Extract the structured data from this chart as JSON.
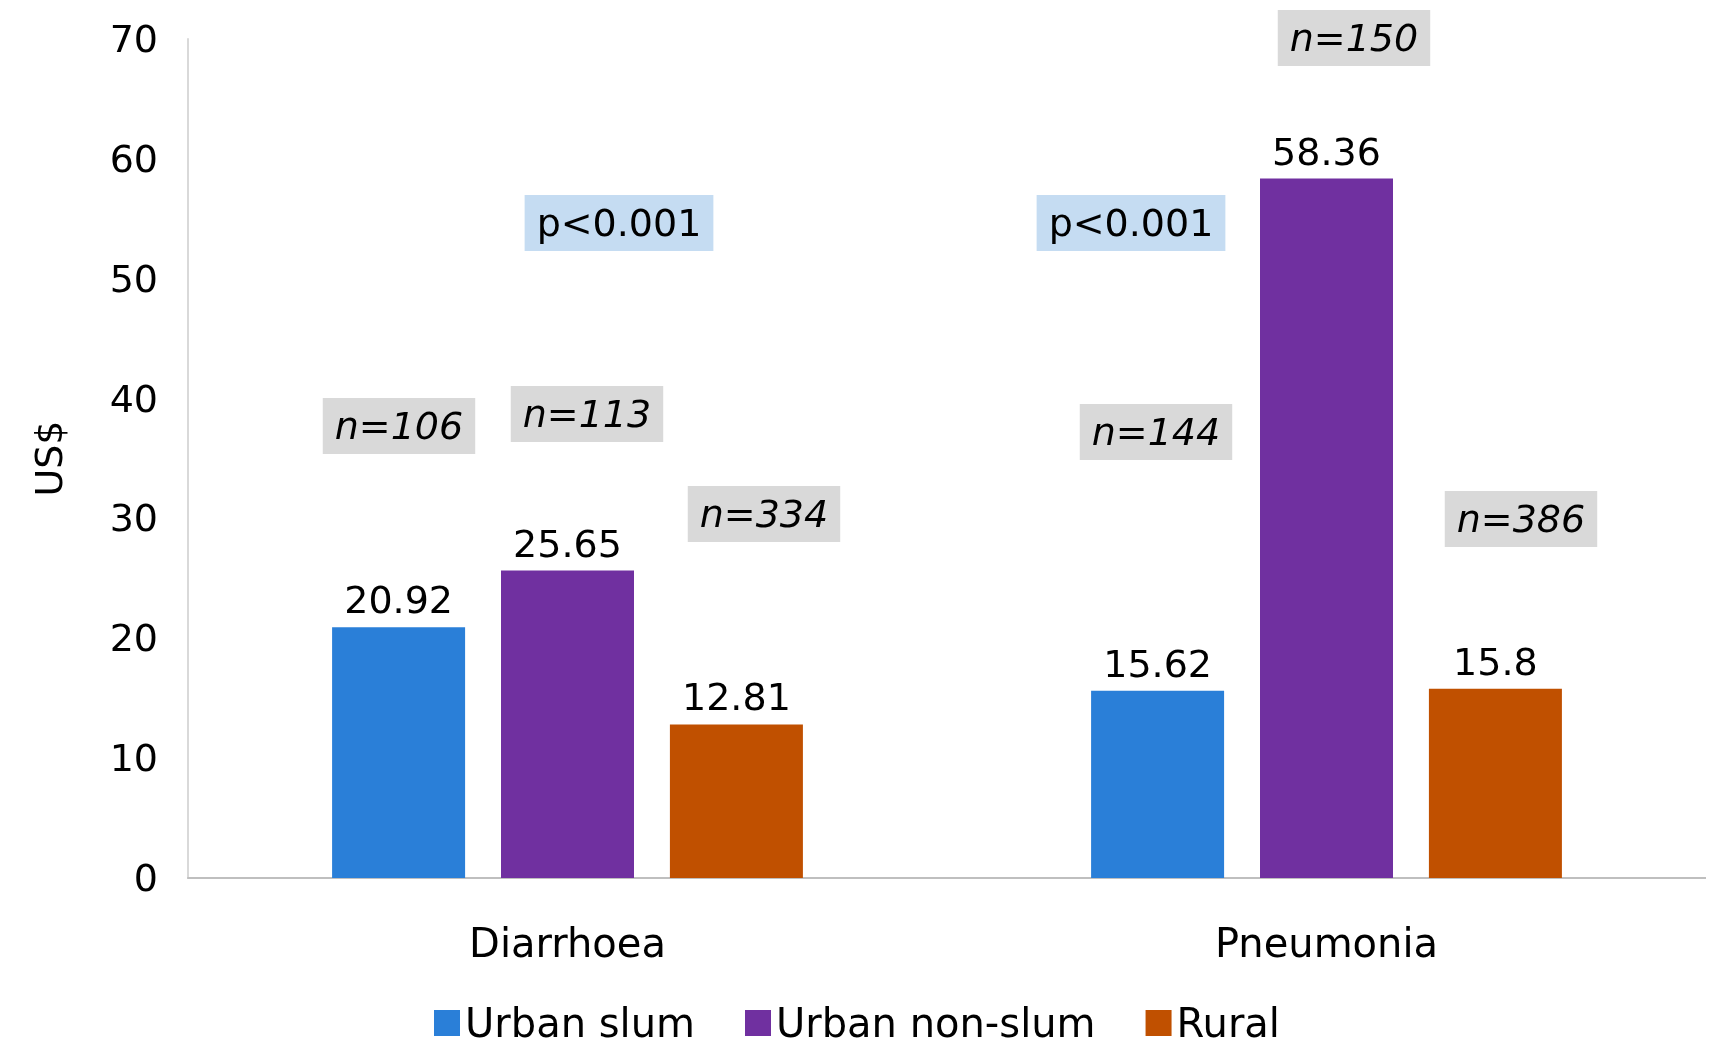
{
  "chart_data": {
    "type": "bar",
    "ylabel": "US$",
    "categories": [
      "Diarrhoea",
      "Pneumonia"
    ],
    "series": [
      {
        "name": "Urban slum",
        "color": "#2a7fd8",
        "values": [
          20.92,
          15.62
        ]
      },
      {
        "name": "Urban non-slum",
        "color": "#7030a0",
        "values": [
          25.65,
          58.36
        ]
      },
      {
        "name": "Rural",
        "color": "#c05000",
        "values": [
          12.81,
          15.8
        ]
      }
    ],
    "ylim": [
      0,
      70
    ],
    "yticks": [
      0,
      10,
      20,
      30,
      40,
      50,
      60,
      70
    ],
    "grid": false,
    "legend": "bottom",
    "data_labels": true,
    "annotations": [
      "n=106",
      "n=113",
      "n=334",
      "n=144",
      "n=150",
      "n=386",
      "p<0.001",
      "p<0.001"
    ]
  }
}
